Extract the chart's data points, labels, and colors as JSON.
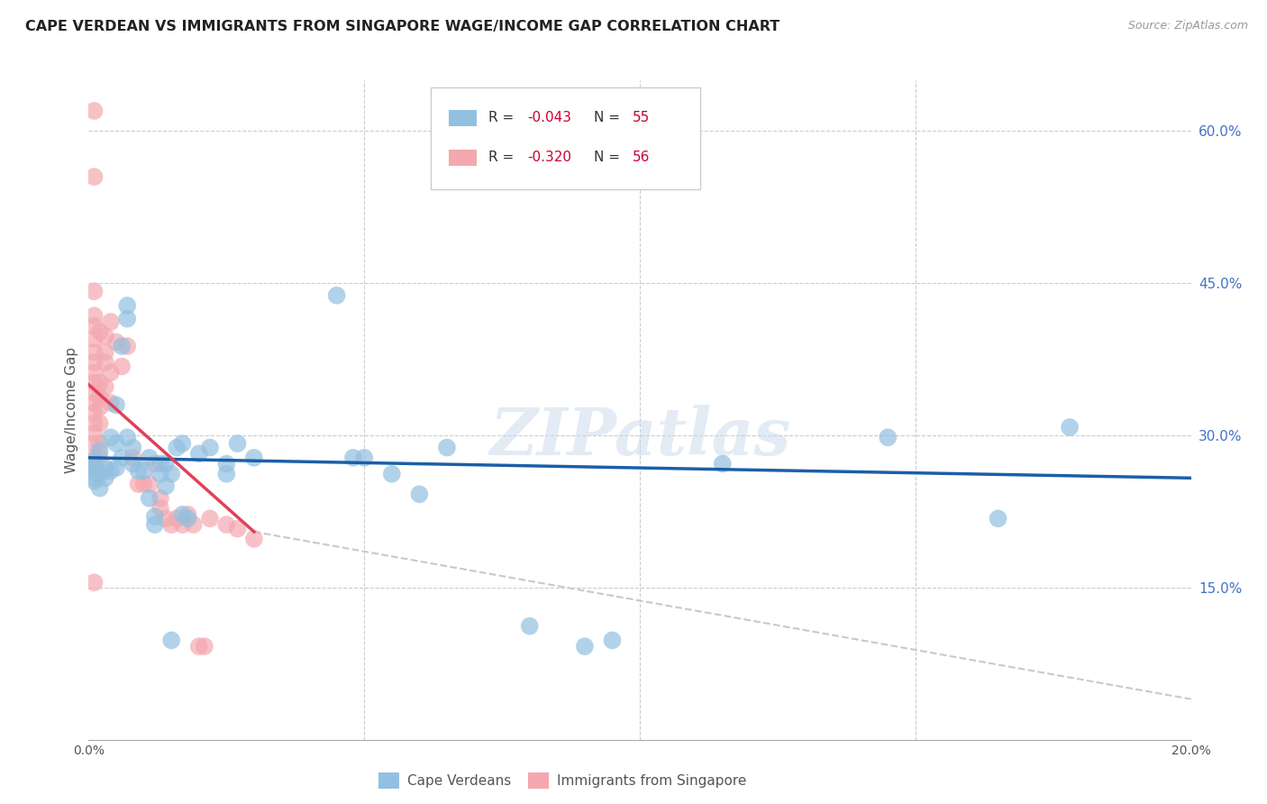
{
  "title": "CAPE VERDEAN VS IMMIGRANTS FROM SINGAPORE WAGE/INCOME GAP CORRELATION CHART",
  "source": "Source: ZipAtlas.com",
  "ylabel": "Wage/Income Gap",
  "xmin": 0.0,
  "xmax": 0.2,
  "ymin": 0.0,
  "ymax": 0.65,
  "yticks": [
    0.15,
    0.3,
    0.45,
    0.6
  ],
  "ytick_labels": [
    "15.0%",
    "30.0%",
    "45.0%",
    "60.0%"
  ],
  "color_blue": "#92C0E0",
  "color_pink": "#F4A8B0",
  "color_blue_line": "#1A5FA8",
  "color_pink_line": "#E0405A",
  "color_dashed_line": "#C8C8D0",
  "watermark_text": "ZIPatlas",
  "blue_trend": [
    0.0,
    0.278,
    0.2,
    0.258
  ],
  "pink_trend": [
    0.0,
    0.35,
    0.03,
    0.205
  ],
  "pink_dashed": [
    0.03,
    0.205,
    0.2,
    0.04
  ],
  "blue_points": [
    [
      0.001,
      0.265
    ],
    [
      0.001,
      0.258
    ],
    [
      0.001,
      0.27
    ],
    [
      0.001,
      0.275
    ],
    [
      0.001,
      0.255
    ],
    [
      0.002,
      0.285
    ],
    [
      0.002,
      0.262
    ],
    [
      0.002,
      0.248
    ],
    [
      0.003,
      0.268
    ],
    [
      0.003,
      0.258
    ],
    [
      0.004,
      0.265
    ],
    [
      0.004,
      0.298
    ],
    [
      0.005,
      0.33
    ],
    [
      0.005,
      0.292
    ],
    [
      0.005,
      0.268
    ],
    [
      0.006,
      0.388
    ],
    [
      0.006,
      0.278
    ],
    [
      0.007,
      0.428
    ],
    [
      0.007,
      0.415
    ],
    [
      0.007,
      0.298
    ],
    [
      0.008,
      0.288
    ],
    [
      0.008,
      0.272
    ],
    [
      0.009,
      0.265
    ],
    [
      0.01,
      0.265
    ],
    [
      0.011,
      0.278
    ],
    [
      0.011,
      0.238
    ],
    [
      0.012,
      0.22
    ],
    [
      0.012,
      0.212
    ],
    [
      0.013,
      0.272
    ],
    [
      0.013,
      0.262
    ],
    [
      0.014,
      0.272
    ],
    [
      0.014,
      0.25
    ],
    [
      0.015,
      0.262
    ],
    [
      0.015,
      0.098
    ],
    [
      0.016,
      0.288
    ],
    [
      0.017,
      0.292
    ],
    [
      0.017,
      0.222
    ],
    [
      0.018,
      0.218
    ],
    [
      0.02,
      0.282
    ],
    [
      0.022,
      0.288
    ],
    [
      0.025,
      0.272
    ],
    [
      0.025,
      0.262
    ],
    [
      0.027,
      0.292
    ],
    [
      0.03,
      0.278
    ],
    [
      0.045,
      0.438
    ],
    [
      0.048,
      0.278
    ],
    [
      0.05,
      0.278
    ],
    [
      0.055,
      0.262
    ],
    [
      0.06,
      0.242
    ],
    [
      0.065,
      0.288
    ],
    [
      0.08,
      0.112
    ],
    [
      0.09,
      0.092
    ],
    [
      0.095,
      0.098
    ],
    [
      0.115,
      0.272
    ],
    [
      0.145,
      0.298
    ],
    [
      0.165,
      0.218
    ],
    [
      0.178,
      0.308
    ]
  ],
  "pink_points": [
    [
      0.001,
      0.62
    ],
    [
      0.001,
      0.555
    ],
    [
      0.001,
      0.442
    ],
    [
      0.001,
      0.418
    ],
    [
      0.001,
      0.408
    ],
    [
      0.001,
      0.395
    ],
    [
      0.001,
      0.382
    ],
    [
      0.001,
      0.372
    ],
    [
      0.001,
      0.362
    ],
    [
      0.001,
      0.352
    ],
    [
      0.001,
      0.342
    ],
    [
      0.001,
      0.332
    ],
    [
      0.001,
      0.322
    ],
    [
      0.001,
      0.312
    ],
    [
      0.001,
      0.302
    ],
    [
      0.001,
      0.292
    ],
    [
      0.001,
      0.278
    ],
    [
      0.001,
      0.268
    ],
    [
      0.001,
      0.155
    ],
    [
      0.002,
      0.402
    ],
    [
      0.002,
      0.352
    ],
    [
      0.002,
      0.338
    ],
    [
      0.002,
      0.328
    ],
    [
      0.002,
      0.312
    ],
    [
      0.002,
      0.292
    ],
    [
      0.002,
      0.278
    ],
    [
      0.002,
      0.262
    ],
    [
      0.003,
      0.398
    ],
    [
      0.003,
      0.382
    ],
    [
      0.003,
      0.372
    ],
    [
      0.003,
      0.348
    ],
    [
      0.004,
      0.412
    ],
    [
      0.004,
      0.362
    ],
    [
      0.004,
      0.332
    ],
    [
      0.005,
      0.392
    ],
    [
      0.006,
      0.368
    ],
    [
      0.007,
      0.388
    ],
    [
      0.008,
      0.278
    ],
    [
      0.009,
      0.252
    ],
    [
      0.01,
      0.252
    ],
    [
      0.011,
      0.252
    ],
    [
      0.012,
      0.272
    ],
    [
      0.013,
      0.238
    ],
    [
      0.013,
      0.228
    ],
    [
      0.014,
      0.218
    ],
    [
      0.015,
      0.212
    ],
    [
      0.016,
      0.218
    ],
    [
      0.017,
      0.212
    ],
    [
      0.018,
      0.222
    ],
    [
      0.019,
      0.212
    ],
    [
      0.02,
      0.092
    ],
    [
      0.021,
      0.092
    ],
    [
      0.022,
      0.218
    ],
    [
      0.025,
      0.212
    ],
    [
      0.027,
      0.208
    ],
    [
      0.03,
      0.198
    ]
  ]
}
